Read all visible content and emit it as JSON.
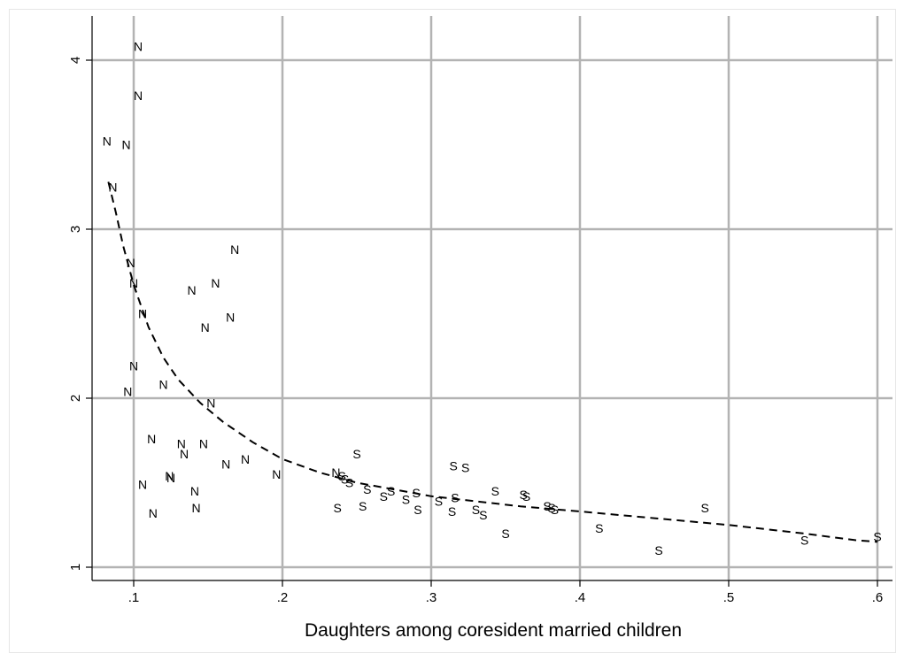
{
  "chart_data": {
    "type": "scatter",
    "title": "",
    "xlabel": "Daughters among coresident married children",
    "ylabel": "",
    "xlim": [
      0.072,
      0.61
    ],
    "ylim": [
      0.93,
      4.15
    ],
    "grid": true,
    "xticks": [
      {
        "value": 0.1,
        "label": ".1"
      },
      {
        "value": 0.2,
        "label": ".2"
      },
      {
        "value": 0.3,
        "label": ".3"
      },
      {
        "value": 0.4,
        "label": ".4"
      },
      {
        "value": 0.5,
        "label": ".5"
      },
      {
        "value": 0.6,
        "label": ".6"
      }
    ],
    "yticks": [
      {
        "value": 1,
        "label": "1"
      },
      {
        "value": 2,
        "label": "2"
      },
      {
        "value": 3,
        "label": "3"
      },
      {
        "value": 4,
        "label": "4"
      }
    ],
    "series": [
      {
        "marker": "N",
        "points": [
          [
            0.103,
            4.08
          ],
          [
            0.103,
            3.79
          ],
          [
            0.082,
            3.52
          ],
          [
            0.095,
            3.5
          ],
          [
            0.086,
            3.25
          ],
          [
            0.098,
            2.8
          ],
          [
            0.1,
            2.68
          ],
          [
            0.106,
            2.5
          ],
          [
            0.1,
            2.19
          ],
          [
            0.096,
            2.04
          ],
          [
            0.12,
            2.08
          ],
          [
            0.168,
            2.88
          ],
          [
            0.139,
            2.64
          ],
          [
            0.155,
            2.68
          ],
          [
            0.165,
            2.48
          ],
          [
            0.148,
            2.42
          ],
          [
            0.152,
            1.97
          ],
          [
            0.112,
            1.76
          ],
          [
            0.132,
            1.73
          ],
          [
            0.134,
            1.67
          ],
          [
            0.147,
            1.73
          ],
          [
            0.175,
            1.64
          ],
          [
            0.162,
            1.61
          ],
          [
            0.196,
            1.55
          ],
          [
            0.124,
            1.54
          ],
          [
            0.125,
            1.53
          ],
          [
            0.106,
            1.49
          ],
          [
            0.141,
            1.45
          ],
          [
            0.142,
            1.35
          ],
          [
            0.113,
            1.32
          ],
          [
            0.236,
            1.56
          ]
        ]
      },
      {
        "marker": "S",
        "points": [
          [
            0.25,
            1.67
          ],
          [
            0.315,
            1.6
          ],
          [
            0.323,
            1.59
          ],
          [
            0.24,
            1.54
          ],
          [
            0.242,
            1.52
          ],
          [
            0.245,
            1.5
          ],
          [
            0.257,
            1.46
          ],
          [
            0.273,
            1.45
          ],
          [
            0.29,
            1.44
          ],
          [
            0.268,
            1.42
          ],
          [
            0.283,
            1.4
          ],
          [
            0.316,
            1.41
          ],
          [
            0.343,
            1.45
          ],
          [
            0.362,
            1.43
          ],
          [
            0.364,
            1.42
          ],
          [
            0.305,
            1.39
          ],
          [
            0.33,
            1.34
          ],
          [
            0.314,
            1.33
          ],
          [
            0.378,
            1.36
          ],
          [
            0.381,
            1.35
          ],
          [
            0.237,
            1.35
          ],
          [
            0.254,
            1.36
          ],
          [
            0.291,
            1.34
          ],
          [
            0.335,
            1.31
          ],
          [
            0.383,
            1.34
          ],
          [
            0.35,
            1.2
          ],
          [
            0.413,
            1.23
          ],
          [
            0.484,
            1.35
          ],
          [
            0.453,
            1.1
          ],
          [
            0.551,
            1.16
          ],
          [
            0.6,
            1.18
          ]
        ]
      },
      {
        "name": "",
        "kind": "fitted-curve",
        "style": "dashed",
        "points": [
          [
            0.083,
            3.28
          ],
          [
            0.088,
            3.1
          ],
          [
            0.093,
            2.9
          ],
          [
            0.1,
            2.67
          ],
          [
            0.11,
            2.42
          ],
          [
            0.12,
            2.24
          ],
          [
            0.13,
            2.11
          ],
          [
            0.145,
            1.97
          ],
          [
            0.16,
            1.86
          ],
          [
            0.18,
            1.74
          ],
          [
            0.2,
            1.64
          ],
          [
            0.225,
            1.56
          ],
          [
            0.25,
            1.5
          ],
          [
            0.275,
            1.46
          ],
          [
            0.3,
            1.42
          ],
          [
            0.33,
            1.39
          ],
          [
            0.36,
            1.36
          ],
          [
            0.4,
            1.33
          ],
          [
            0.45,
            1.29
          ],
          [
            0.5,
            1.25
          ],
          [
            0.55,
            1.2
          ],
          [
            0.585,
            1.16
          ],
          [
            0.6,
            1.15
          ]
        ]
      }
    ]
  }
}
